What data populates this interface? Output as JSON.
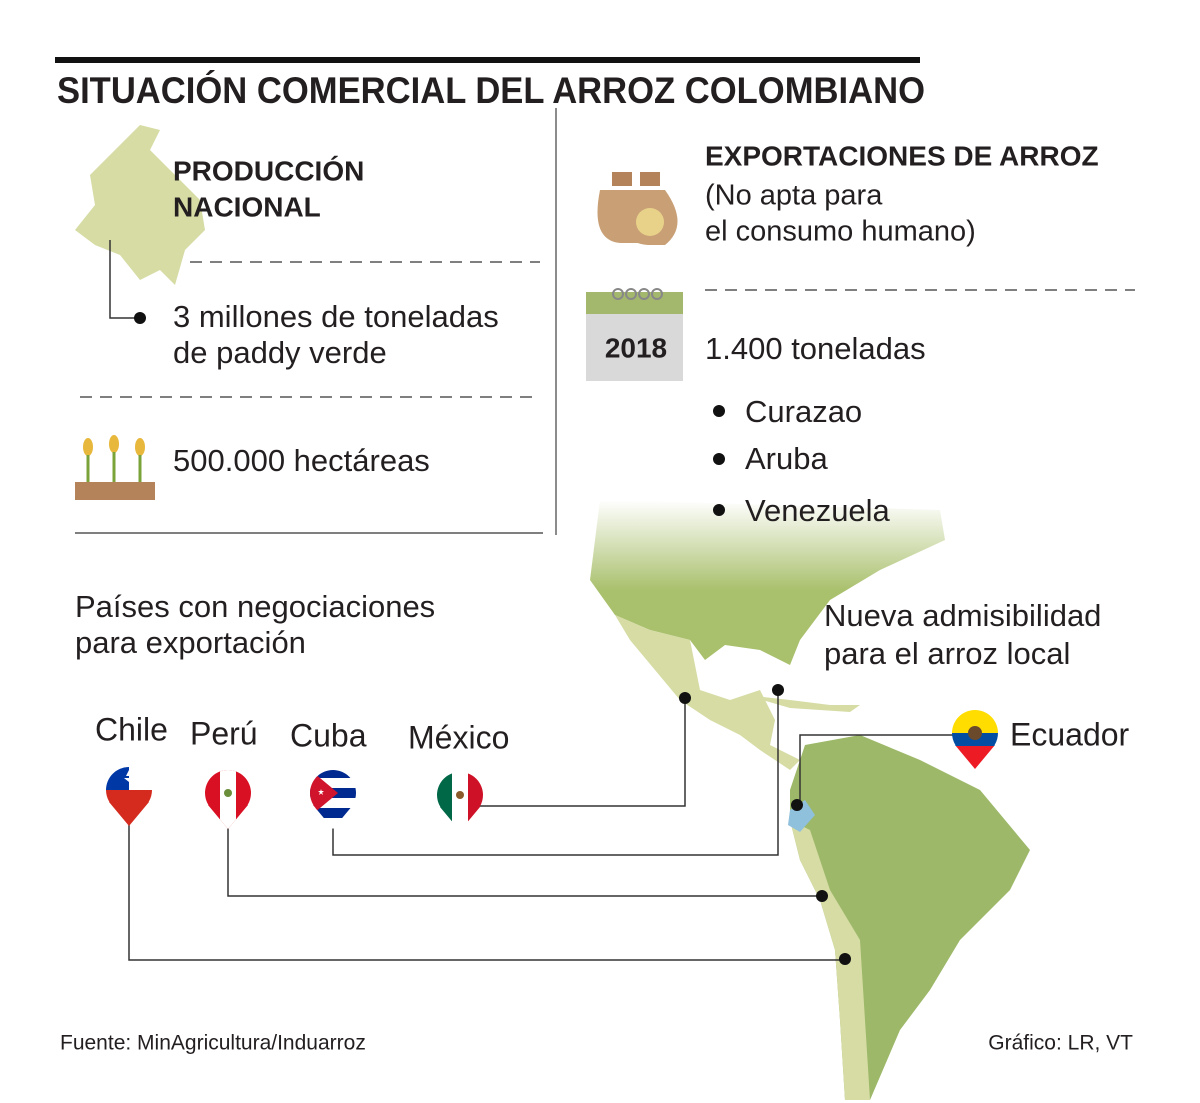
{
  "title": "SITUACIÓN COMERCIAL DEL ARROZ COLOMBIANO",
  "production": {
    "heading_lines": [
      "PRODUCCIÓN",
      "NACIONAL"
    ],
    "volume_lines": [
      "3 millones de toneladas",
      "de paddy verde"
    ],
    "area": "500.000 hectáreas"
  },
  "exports": {
    "heading": "EXPORTACIONES DE ARROZ",
    "note_lines": [
      "(No apta para",
      "el consumo humano)"
    ],
    "year": "2018",
    "volume": "1.400 toneladas",
    "destinations": [
      "Curazao",
      "Aruba",
      "Venezuela"
    ]
  },
  "negotiations": {
    "heading_lines": [
      "Países con negociaciones",
      "para exportación"
    ],
    "countries": [
      "Chile",
      "Perú",
      "Cuba",
      "México"
    ]
  },
  "admissibility": {
    "heading_lines": [
      "Nueva admisibilidad",
      "para el arroz local"
    ],
    "country": "Ecuador"
  },
  "footer": {
    "source": "Fuente: MinAgricultura/Induarroz",
    "credit": "Gráfico: LR, VT"
  }
}
